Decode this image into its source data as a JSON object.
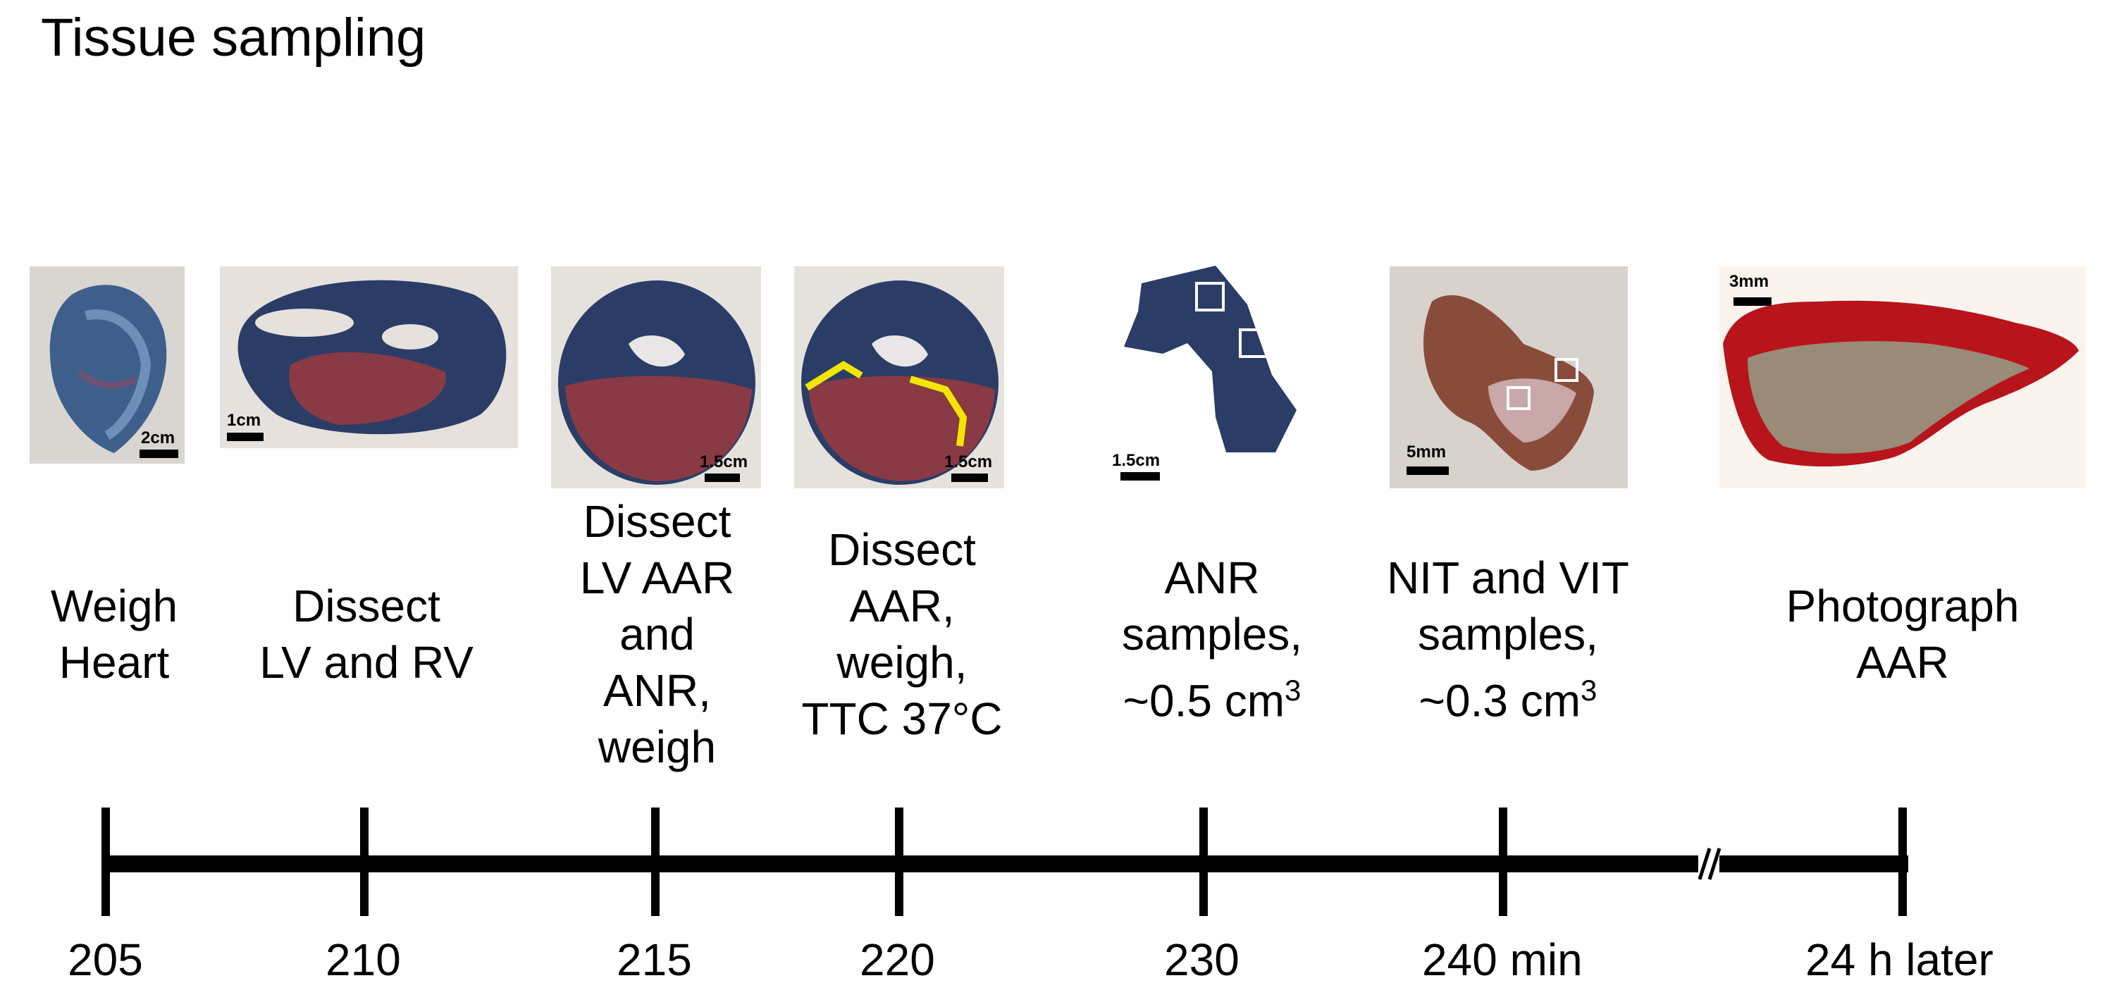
{
  "title": "Tissue sampling",
  "steps": [
    {
      "id": "s1",
      "lines": [
        "Weigh",
        "Heart"
      ],
      "scale_label": "2cm",
      "tick": "205"
    },
    {
      "id": "s2",
      "lines": [
        "Dissect",
        "LV and RV"
      ],
      "scale_label": "1cm",
      "tick": "210"
    },
    {
      "id": "s3",
      "lines": [
        "Dissect",
        "LV AAR",
        "and",
        "ANR,",
        "weigh"
      ],
      "scale_label": "1.5cm",
      "tick": "215"
    },
    {
      "id": "s4",
      "lines": [
        "Dissect",
        "AAR,",
        "weigh,",
        "TTC 37°C"
      ],
      "scale_label": "1.5cm",
      "tick": "220"
    },
    {
      "id": "s5",
      "lines": [
        "ANR",
        "samples,"
      ],
      "volume": {
        "prefix": "~0.5 cm",
        "exponent": "3"
      },
      "scale_label": "1.5cm",
      "tick": "230"
    },
    {
      "id": "s6",
      "lines": [
        "NIT and VIT",
        "samples,"
      ],
      "volume": {
        "prefix": "~0.3 cm",
        "exponent": "3"
      },
      "scale_label": "5mm",
      "tick": "240 min"
    },
    {
      "id": "s7",
      "lines": [
        "Photograph",
        "AAR"
      ],
      "scale_label": "3mm",
      "tick": "24 h later"
    }
  ],
  "colors": {
    "timeline": "#000000",
    "tissue_blue": "#2b3d66",
    "tissue_red": "#8a3a44",
    "highlight_yellow": "#f2e600",
    "sample_box": "#ffffff"
  }
}
